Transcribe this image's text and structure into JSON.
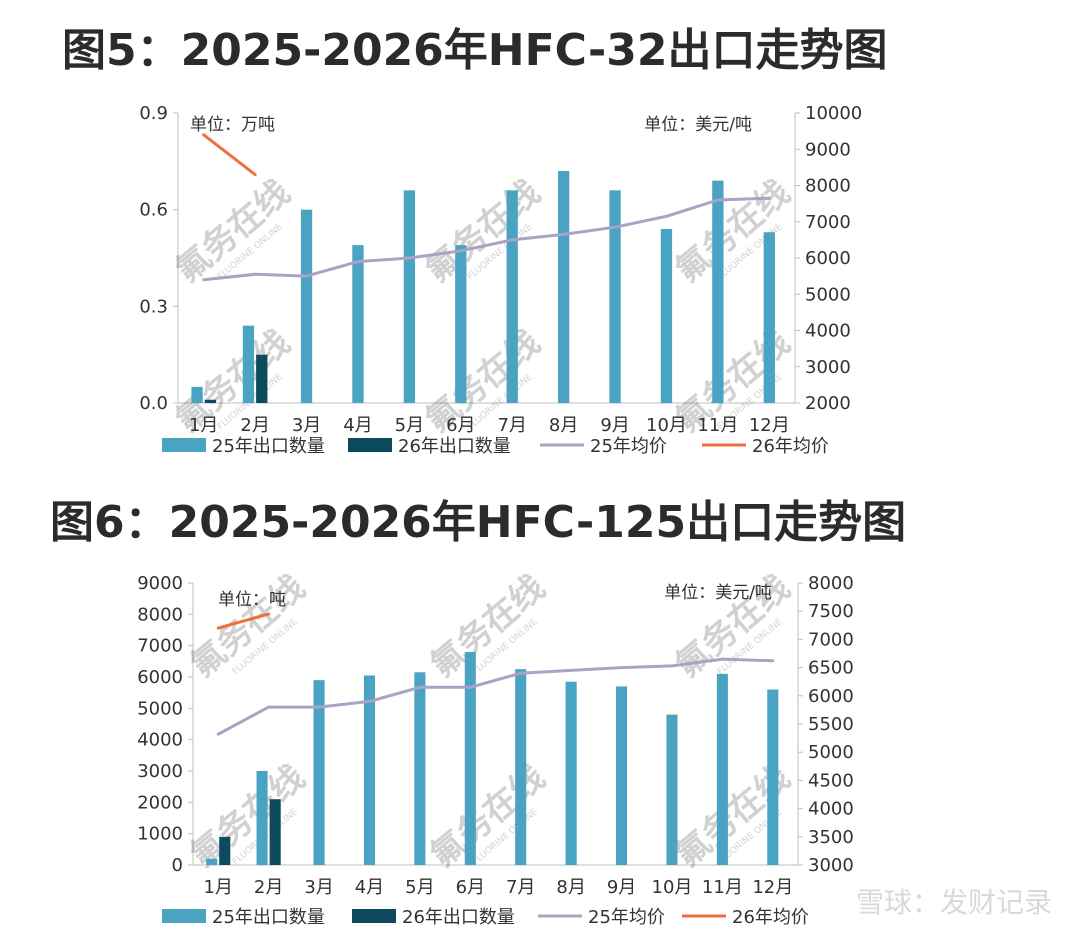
{
  "charts": [
    {
      "heading": "图5：2025-2026年HFC-32出口走势图",
      "left_unit": "单位：万吨",
      "right_unit": "单位：美元/吨",
      "watermark": "氟务在线",
      "watermark_sub": "FLUORINE ONLINE",
      "left_ticks": [
        "0.0",
        "0.3",
        "0.6",
        "0.9"
      ],
      "right_ticks": [
        "2000",
        "3000",
        "4000",
        "5000",
        "6000",
        "7000",
        "8000",
        "9000",
        "10000"
      ],
      "legend": [
        "25年出口数量",
        "26年出口数量",
        "25年均价",
        "26年均价"
      ]
    },
    {
      "heading": "图6：2025-2026年HFC-125出口走势图",
      "left_unit": "单位：吨",
      "right_unit": "单位：美元/吨",
      "watermark": "氟务在线",
      "watermark_sub": "FLUORINE ONLINE",
      "left_ticks": [
        "0",
        "1000",
        "2000",
        "3000",
        "4000",
        "5000",
        "6000",
        "7000",
        "8000",
        "9000"
      ],
      "right_ticks": [
        "3000",
        "3500",
        "4000",
        "4500",
        "5000",
        "5500",
        "6000",
        "6500",
        "7000",
        "7500",
        "8000"
      ],
      "legend": [
        "25年出口数量",
        "26年出口数量",
        "25年均价",
        "26年均价"
      ]
    }
  ],
  "footer_watermark": "雪球：发财记录",
  "chart_data": [
    {
      "type": "bar",
      "title": "2025-2026年HFC-32出口走势图",
      "categories": [
        "1月",
        "2月",
        "3月",
        "4月",
        "5月",
        "6月",
        "7月",
        "8月",
        "9月",
        "10月",
        "11月",
        "12月"
      ],
      "ylim": [
        0,
        0.9
      ],
      "y2lim": [
        2000,
        10000
      ],
      "series": [
        {
          "name": "25年出口数量",
          "kind": "bar",
          "axis": "left",
          "color": "#4ba3c3",
          "values": [
            0.05,
            0.24,
            0.6,
            0.49,
            0.66,
            0.49,
            0.66,
            0.72,
            0.66,
            0.54,
            0.69,
            0.53
          ]
        },
        {
          "name": "26年出口数量",
          "kind": "bar",
          "axis": "left",
          "color": "#0e4a5e",
          "values": [
            0.01,
            0.15,
            null,
            null,
            null,
            null,
            null,
            null,
            null,
            null,
            null,
            null
          ]
        },
        {
          "name": "25年均价",
          "kind": "line",
          "axis": "right",
          "color": "#a9a3c4",
          "values": [
            5400,
            5550,
            5500,
            5900,
            6000,
            6200,
            6500,
            6650,
            6850,
            7150,
            7600,
            7650
          ]
        },
        {
          "name": "26年均价",
          "kind": "line",
          "axis": "right",
          "color": "#ee6f3a",
          "values": [
            9400,
            8300,
            null,
            null,
            null,
            null,
            null,
            null,
            null,
            null,
            null,
            null
          ]
        }
      ]
    },
    {
      "type": "bar",
      "title": "2025-2026年HFC-125出口走势图",
      "categories": [
        "1月",
        "2月",
        "3月",
        "4月",
        "5月",
        "6月",
        "7月",
        "8月",
        "9月",
        "10月",
        "11月",
        "12月"
      ],
      "ylim": [
        0,
        9000
      ],
      "y2lim": [
        3000,
        8000
      ],
      "series": [
        {
          "name": "25年出口数量",
          "kind": "bar",
          "axis": "left",
          "color": "#4ba3c3",
          "values": [
            200,
            3000,
            5900,
            6050,
            6150,
            6800,
            6250,
            5850,
            5700,
            4800,
            6100,
            5600
          ]
        },
        {
          "name": "26年出口数量",
          "kind": "bar",
          "axis": "left",
          "color": "#0e4a5e",
          "values": [
            900,
            2100,
            null,
            null,
            null,
            null,
            null,
            null,
            null,
            null,
            null,
            null
          ]
        },
        {
          "name": "25年均价",
          "kind": "line",
          "axis": "right",
          "color": "#a9a3c4",
          "values": [
            5320,
            5800,
            5800,
            5900,
            6150,
            6150,
            6400,
            6450,
            6500,
            6530,
            6650,
            6620
          ]
        },
        {
          "name": "26年均价",
          "kind": "line",
          "axis": "right",
          "color": "#ee6f3a",
          "values": [
            7200,
            7450,
            null,
            null,
            null,
            null,
            null,
            null,
            null,
            null,
            null,
            null
          ]
        }
      ]
    }
  ]
}
